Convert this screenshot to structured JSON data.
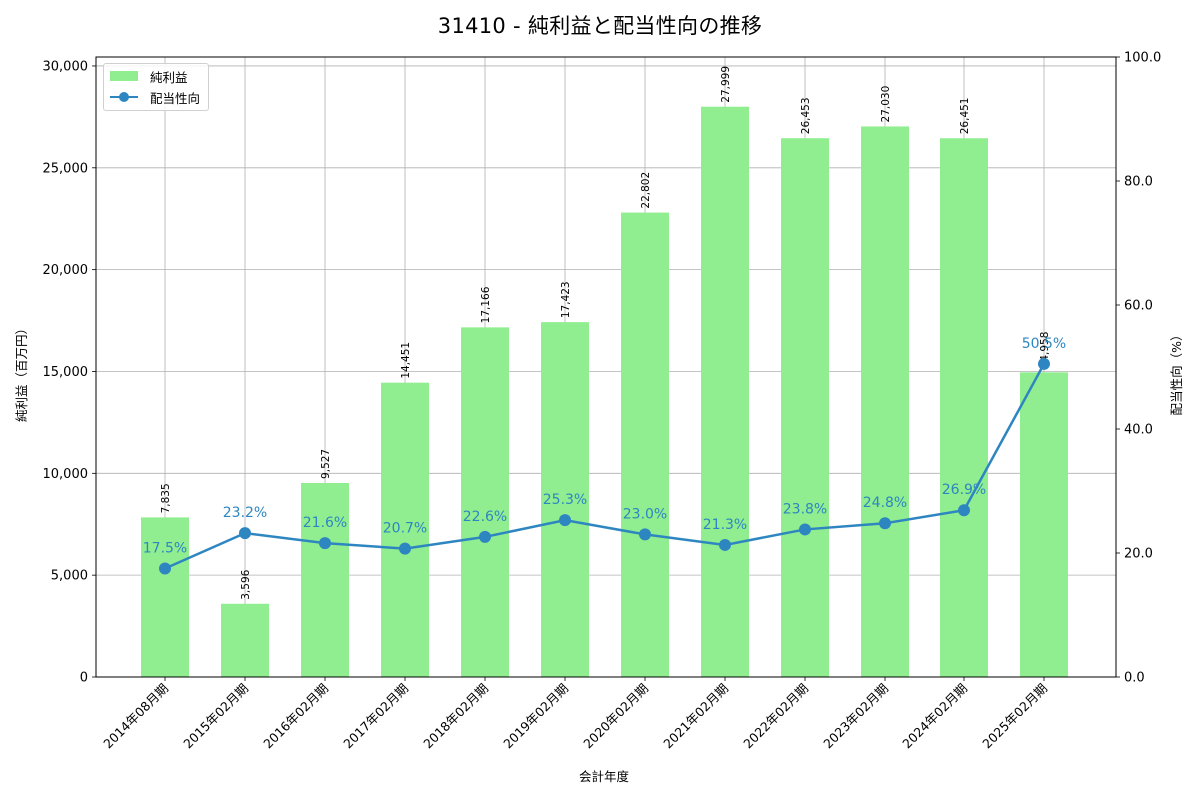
{
  "chart_data": {
    "type": "bar+line",
    "title": "31410 - 純利益と配当性向の推移",
    "xlabel": "会計年度",
    "ylabel": "純利益（百万円）",
    "y2label": "配当性向（%）",
    "categories": [
      "2014年08月期",
      "2015年02月期",
      "2016年02月期",
      "2017年02月期",
      "2018年02月期",
      "2019年02月期",
      "2020年02月期",
      "2021年02月期",
      "2022年02月期",
      "2023年02月期",
      "2024年02月期",
      "2025年02月期"
    ],
    "series": [
      {
        "name": "純利益",
        "type": "bar",
        "axis": "left",
        "color": "#90ee90",
        "values": [
          7835,
          3596,
          9527,
          14451,
          17166,
          17423,
          22802,
          27999,
          26453,
          27030,
          26451,
          14958
        ],
        "labels": [
          "7,835",
          "3,596",
          "9,527",
          "14,451",
          "17,166",
          "17,423",
          "22,802",
          "27,999",
          "26,453",
          "27,030",
          "26,451",
          "14,958"
        ]
      },
      {
        "name": "配当性向",
        "type": "line",
        "axis": "right",
        "color": "#2e86c1",
        "values": [
          17.5,
          23.2,
          21.6,
          20.7,
          22.6,
          25.3,
          23.0,
          21.3,
          23.8,
          24.8,
          26.9,
          50.5
        ],
        "labels": [
          "17.5%",
          "23.2%",
          "21.6%",
          "20.7%",
          "22.6%",
          "25.3%",
          "23.0%",
          "21.3%",
          "23.8%",
          "24.8%",
          "26.9%",
          "50.5%"
        ]
      }
    ],
    "ylim": [
      0,
      30440
    ],
    "y2lim": [
      0,
      100
    ],
    "yticks": [
      "0",
      "5,000",
      "10,000",
      "15,000",
      "20,000",
      "25,000",
      "30,000"
    ],
    "y2ticks": [
      "0.0",
      "20.0",
      "40.0",
      "60.0",
      "80.0",
      "100.0"
    ],
    "grid": true,
    "legend_position": "upper left"
  },
  "legend": {
    "items": [
      {
        "label": "純利益",
        "color": "#90ee90"
      },
      {
        "label": "配当性向",
        "color": "#2e86c1"
      }
    ]
  }
}
